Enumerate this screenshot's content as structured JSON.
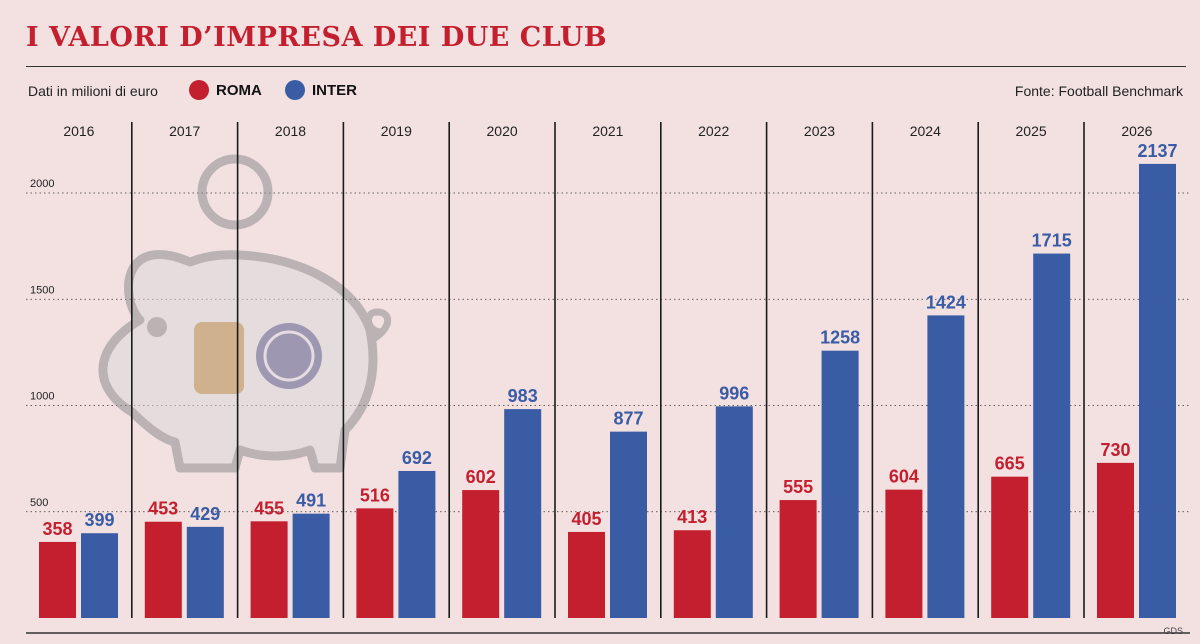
{
  "header": {
    "title": "I VALORI D’IMPRESA DEI DUE CLUB"
  },
  "subtitle": "Dati in milioni di euro",
  "source": "Fonte: Football Benchmark",
  "footer_credit": "GDS",
  "colors": {
    "roma": "#c41f2f",
    "inter": "#3a5ca4",
    "background": "#f3e1e2",
    "title": "#c41f2f"
  },
  "illustration": {
    "name": "piggy-bank-icon",
    "logos": [
      "roma-logo-icon",
      "inter-logo-icon"
    ]
  },
  "chart_data": {
    "type": "bar",
    "title": "I VALORI D’IMPRESA DEI DUE CLUB",
    "xlabel": "",
    "ylabel": "",
    "categories": [
      "2016",
      "2017",
      "2018",
      "2019",
      "2020",
      "2021",
      "2022",
      "2023",
      "2024",
      "2025",
      "2026"
    ],
    "series": [
      {
        "name": "ROMA",
        "color": "#c41f2f",
        "values": [
          358,
          453,
          455,
          516,
          602,
          405,
          413,
          555,
          604,
          665,
          730
        ]
      },
      {
        "name": "INTER",
        "color": "#3a5ca4",
        "values": [
          399,
          429,
          491,
          692,
          983,
          877,
          996,
          1258,
          1424,
          1715,
          2137
        ]
      }
    ],
    "yticks": [
      500,
      1000,
      1500,
      2000
    ],
    "ylim": [
      0,
      2250
    ],
    "grid": true,
    "legend": "top-left"
  }
}
